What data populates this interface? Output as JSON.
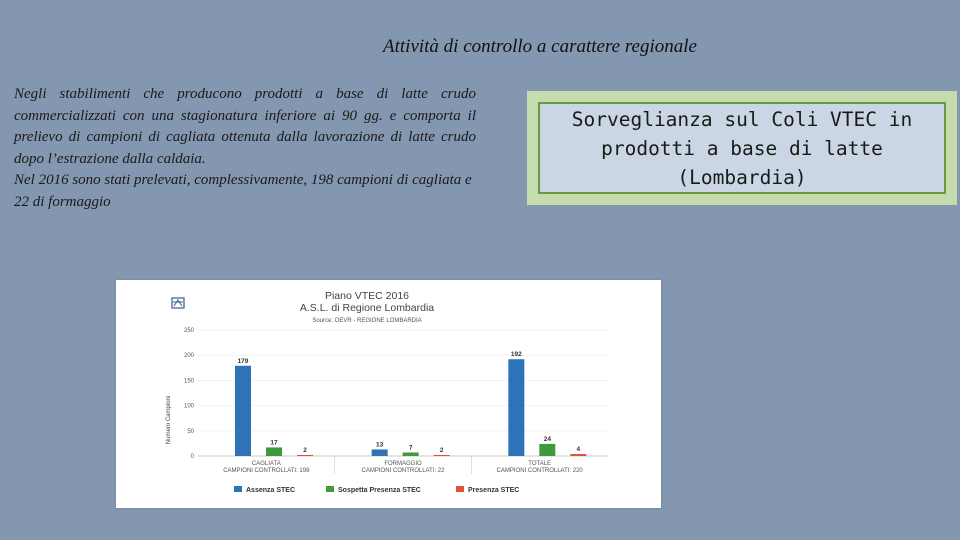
{
  "slide": {
    "title": "Attività di controllo a carattere regionale",
    "paragraph1": "Negli stabilimenti che producono prodotti a base di latte crudo commercializzati con una stagionatura inferiore ai 90 gg. e comporta il prelievo di campioni di cagliata ottenuta dalla lavorazione di latte crudo dopo l’estrazione dalla caldaia.",
    "paragraph2": "Nel 2016 sono stati prelevati, complessivamente, 198 campioni di cagliata e 22 di formaggio",
    "box_text": "Sorveglianza sul Coli VTEC in prodotti a base di latte (Lombardia)"
  },
  "chart_data": {
    "type": "bar",
    "title": "Piano VTEC 2016",
    "subtitle": "A.S.L. di Regione Lombardia",
    "source": "Source: OEVR - REGIONE LOMBARDIA",
    "ylabel": "Numero Campioni",
    "ylim": [
      0,
      250
    ],
    "yticks": [
      0,
      50,
      100,
      150,
      200,
      250
    ],
    "categories": [
      [
        "CAGLIATA",
        "CAMPIONI CONTROLLATI: 198"
      ],
      [
        "FORMAGGIO",
        "CAMPIONI CONTROLLATI: 22"
      ],
      [
        "TOTALE",
        "CAMPIONI CONTROLLATI: 220"
      ]
    ],
    "series": [
      {
        "name": "Assenza STEC",
        "color": "#2e73b8",
        "values": [
          179,
          13,
          192
        ]
      },
      {
        "name": "Sospetta Presenza STEC",
        "color": "#3e9a3a",
        "values": [
          17,
          7,
          24
        ]
      },
      {
        "name": "Presenza STEC",
        "color": "#e0533a",
        "values": [
          2,
          2,
          4
        ]
      }
    ],
    "legend": "bottom",
    "logo_icon": "lombardia-logo-icon"
  }
}
